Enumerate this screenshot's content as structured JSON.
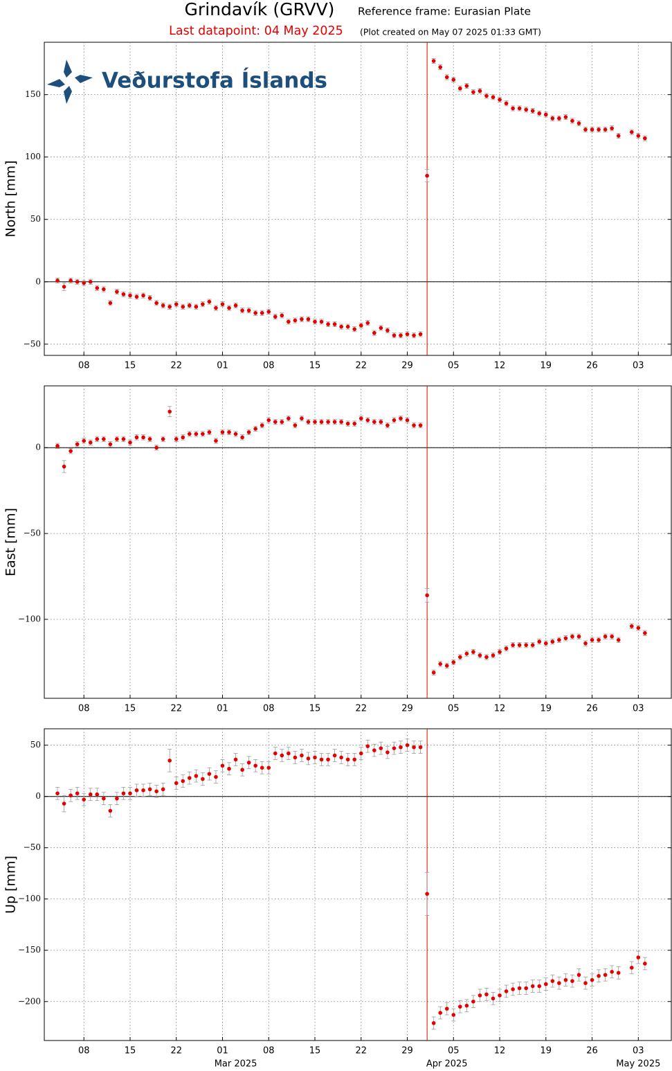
{
  "header": {
    "title": "Grindavík (GRVV)",
    "reference": "Reference frame: Eurasian Plate",
    "last_datapoint": "Last datapoint: 04 May 2025",
    "created": "(Plot created on May 07 2025 01:33 GMT)",
    "logo": "Veðurstofa Íslands"
  },
  "chart_data": [
    {
      "type": "scatter",
      "y_label": "North [mm]",
      "color": "#e60000",
      "error_color": "#999999",
      "grid": true,
      "event_line": "2025-04-01",
      "event_color": "#e60000",
      "xlim": [
        "2025-02-02",
        "2025-05-08"
      ],
      "xticks": [
        {
          "value": "2025-02-08",
          "label": "08"
        },
        {
          "value": "2025-02-15",
          "label": "15"
        },
        {
          "value": "2025-02-22",
          "label": "22"
        },
        {
          "value": "2025-03-01",
          "label": "01"
        },
        {
          "value": "2025-03-08",
          "label": "08"
        },
        {
          "value": "2025-03-15",
          "label": "15"
        },
        {
          "value": "2025-03-22",
          "label": "22"
        },
        {
          "value": "2025-03-29",
          "label": "29"
        },
        {
          "value": "2025-04-05",
          "label": "05"
        },
        {
          "value": "2025-04-12",
          "label": "12"
        },
        {
          "value": "2025-04-19",
          "label": "19"
        },
        {
          "value": "2025-04-26",
          "label": "26"
        },
        {
          "value": "2025-05-03",
          "label": "03"
        }
      ],
      "ylim": [
        -59,
        192
      ],
      "yticks": [
        {
          "value": -50,
          "label": "−50"
        },
        0,
        50,
        100,
        150
      ],
      "x": [
        "2025-02-04",
        "2025-02-05",
        "2025-02-06",
        "2025-02-07",
        "2025-02-08",
        "2025-02-09",
        "2025-02-10",
        "2025-02-11",
        "2025-02-12",
        "2025-02-13",
        "2025-02-14",
        "2025-02-15",
        "2025-02-16",
        "2025-02-17",
        "2025-02-18",
        "2025-02-19",
        "2025-02-20",
        "2025-02-21",
        "2025-02-22",
        "2025-02-23",
        "2025-02-24",
        "2025-02-25",
        "2025-02-26",
        "2025-02-27",
        "2025-02-28",
        "2025-03-01",
        "2025-03-02",
        "2025-03-03",
        "2025-03-04",
        "2025-03-05",
        "2025-03-06",
        "2025-03-07",
        "2025-03-08",
        "2025-03-09",
        "2025-03-10",
        "2025-03-11",
        "2025-03-12",
        "2025-03-13",
        "2025-03-14",
        "2025-03-15",
        "2025-03-16",
        "2025-03-17",
        "2025-03-18",
        "2025-03-19",
        "2025-03-20",
        "2025-03-21",
        "2025-03-22",
        "2025-03-23",
        "2025-03-24",
        "2025-03-25",
        "2025-03-26",
        "2025-03-27",
        "2025-03-28",
        "2025-03-29",
        "2025-03-30",
        "2025-03-31",
        "2025-04-01",
        "2025-04-02",
        "2025-04-03",
        "2025-04-04",
        "2025-04-05",
        "2025-04-06",
        "2025-04-07",
        "2025-04-08",
        "2025-04-09",
        "2025-04-10",
        "2025-04-11",
        "2025-04-12",
        "2025-04-13",
        "2025-04-14",
        "2025-04-15",
        "2025-04-16",
        "2025-04-17",
        "2025-04-18",
        "2025-04-19",
        "2025-04-20",
        "2025-04-21",
        "2025-04-22",
        "2025-04-23",
        "2025-04-24",
        "2025-04-25",
        "2025-04-26",
        "2025-04-27",
        "2025-04-28",
        "2025-04-29",
        "2025-04-30",
        "2025-05-02",
        "2025-05-03",
        "2025-05-04"
      ],
      "values": [
        1,
        -4,
        1,
        0,
        -1,
        0,
        -5,
        -6,
        -17,
        -8,
        -10,
        -11,
        -12,
        -11,
        -13,
        -17,
        -19,
        -20,
        -18,
        -20,
        -19,
        -20,
        -18,
        -16,
        -21,
        -18,
        -21,
        -19,
        -23,
        -23,
        -25,
        -25,
        -24,
        -28,
        -27,
        -32,
        -31,
        -30,
        -30,
        -32,
        -32,
        -34,
        -34,
        -36,
        -36,
        -38,
        -35,
        -33,
        -41,
        -37,
        -39,
        -43,
        -43,
        -42,
        -43,
        -42,
        85,
        177,
        172,
        164,
        162,
        155,
        157,
        152,
        153,
        149,
        148,
        146,
        143,
        139,
        139,
        138,
        137,
        135,
        134,
        131,
        131,
        132,
        129,
        127,
        122,
        122,
        122,
        122,
        123,
        117,
        120,
        117,
        115
      ],
      "errors": [
        2,
        3,
        2,
        2,
        2,
        2,
        2,
        2,
        2,
        2,
        2,
        2,
        2,
        2,
        2,
        2,
        2,
        2,
        2,
        2,
        2,
        2,
        2,
        2,
        2,
        2,
        2,
        2,
        2,
        2,
        2,
        2,
        2,
        2,
        2,
        2,
        2,
        2,
        2,
        2,
        2,
        2,
        2,
        2,
        2,
        2,
        2,
        2,
        2,
        2,
        2,
        2,
        2,
        2,
        2,
        2,
        5,
        2,
        2,
        2,
        2,
        2,
        2,
        2,
        2,
        2,
        2,
        2,
        2,
        2,
        2,
        2,
        2,
        2,
        2,
        2,
        2,
        2,
        2,
        2,
        2,
        2,
        2,
        2,
        2,
        2,
        2,
        2,
        2
      ]
    },
    {
      "type": "scatter",
      "y_label": "East [mm]",
      "color": "#e60000",
      "error_color": "#999999",
      "grid": true,
      "event_line": "2025-04-01",
      "event_color": "#e60000",
      "xlim": [
        "2025-02-02",
        "2025-05-08"
      ],
      "xticks": [
        {
          "value": "2025-02-08",
          "label": "08"
        },
        {
          "value": "2025-02-15",
          "label": "15"
        },
        {
          "value": "2025-02-22",
          "label": "22"
        },
        {
          "value": "2025-03-01",
          "label": "01"
        },
        {
          "value": "2025-03-08",
          "label": "08"
        },
        {
          "value": "2025-03-15",
          "label": "15"
        },
        {
          "value": "2025-03-22",
          "label": "22"
        },
        {
          "value": "2025-03-29",
          "label": "29"
        },
        {
          "value": "2025-04-05",
          "label": "05"
        },
        {
          "value": "2025-04-12",
          "label": "12"
        },
        {
          "value": "2025-04-19",
          "label": "19"
        },
        {
          "value": "2025-04-26",
          "label": "26"
        },
        {
          "value": "2025-05-03",
          "label": "03"
        }
      ],
      "ylim": [
        -146,
        36
      ],
      "yticks": [
        {
          "value": -100,
          "label": "−100"
        },
        {
          "value": -50,
          "label": "−50"
        },
        0
      ],
      "x": [
        "2025-02-04",
        "2025-02-05",
        "2025-02-06",
        "2025-02-07",
        "2025-02-08",
        "2025-02-09",
        "2025-02-10",
        "2025-02-11",
        "2025-02-12",
        "2025-02-13",
        "2025-02-14",
        "2025-02-15",
        "2025-02-16",
        "2025-02-17",
        "2025-02-18",
        "2025-02-19",
        "2025-02-20",
        "2025-02-21",
        "2025-02-22",
        "2025-02-23",
        "2025-02-24",
        "2025-02-25",
        "2025-02-26",
        "2025-02-27",
        "2025-02-28",
        "2025-03-01",
        "2025-03-02",
        "2025-03-03",
        "2025-03-04",
        "2025-03-05",
        "2025-03-06",
        "2025-03-07",
        "2025-03-08",
        "2025-03-09",
        "2025-03-10",
        "2025-03-11",
        "2025-03-12",
        "2025-03-13",
        "2025-03-14",
        "2025-03-15",
        "2025-03-16",
        "2025-03-17",
        "2025-03-18",
        "2025-03-19",
        "2025-03-20",
        "2025-03-21",
        "2025-03-22",
        "2025-03-23",
        "2025-03-24",
        "2025-03-25",
        "2025-03-26",
        "2025-03-27",
        "2025-03-28",
        "2025-03-29",
        "2025-03-30",
        "2025-03-31",
        "2025-04-01",
        "2025-04-02",
        "2025-04-03",
        "2025-04-04",
        "2025-04-05",
        "2025-04-06",
        "2025-04-07",
        "2025-04-08",
        "2025-04-09",
        "2025-04-10",
        "2025-04-11",
        "2025-04-12",
        "2025-04-13",
        "2025-04-14",
        "2025-04-15",
        "2025-04-16",
        "2025-04-17",
        "2025-04-18",
        "2025-04-19",
        "2025-04-20",
        "2025-04-21",
        "2025-04-22",
        "2025-04-23",
        "2025-04-24",
        "2025-04-25",
        "2025-04-26",
        "2025-04-27",
        "2025-04-28",
        "2025-04-29",
        "2025-04-30",
        "2025-05-02",
        "2025-05-03",
        "2025-05-04"
      ],
      "values": [
        1,
        -11,
        -2,
        2,
        4,
        3,
        5,
        5,
        2,
        5,
        5,
        3,
        6,
        6,
        5,
        0,
        5,
        21,
        5,
        6,
        8,
        8,
        8,
        9,
        4,
        9,
        9,
        8,
        6,
        9,
        11,
        13,
        16,
        15,
        15,
        17,
        13,
        17,
        15,
        15,
        15,
        15,
        15,
        15,
        14,
        14,
        17,
        16,
        15,
        15,
        13,
        16,
        17,
        16,
        13,
        13,
        -86,
        -131,
        -126,
        -127,
        -125,
        -122,
        -120,
        -119,
        -121,
        -122,
        -121,
        -119,
        -117,
        -115,
        -115,
        -115,
        -115,
        -113,
        -114,
        -113,
        -112,
        -111,
        -110,
        -110,
        -114,
        -112,
        -112,
        -110,
        -110,
        -112,
        -104,
        -105,
        -108
      ],
      "errors": [
        1.5,
        3.5,
        1.5,
        1.5,
        1.5,
        1.5,
        1.5,
        1.5,
        1.5,
        1.5,
        1.5,
        1.5,
        1.5,
        1.5,
        1.5,
        1.5,
        1.5,
        3,
        1.5,
        1.5,
        1.5,
        1.5,
        1.5,
        1.5,
        1.5,
        1.5,
        1.5,
        1.5,
        1.5,
        1.5,
        1.5,
        1.5,
        1.5,
        1.5,
        1.5,
        1.5,
        1.5,
        1.5,
        1.5,
        1.5,
        1.5,
        1.5,
        1.5,
        1.5,
        1.5,
        1.5,
        1.5,
        1.5,
        1.5,
        1.5,
        1.5,
        1.5,
        1.5,
        1.5,
        1.5,
        1.5,
        4,
        1.5,
        1.5,
        1.5,
        1.5,
        1.5,
        1.5,
        1.5,
        1.5,
        1.5,
        1.5,
        1.5,
        1.5,
        1.5,
        1.5,
        1.5,
        1.5,
        1.5,
        1.5,
        1.5,
        1.5,
        1.5,
        1.5,
        1.5,
        1.5,
        1.5,
        1.5,
        1.5,
        1.5,
        1.5,
        1.5,
        1.5,
        1.5
      ]
    },
    {
      "type": "scatter",
      "y_label": "Up [mm]",
      "color": "#e60000",
      "error_color": "#999999",
      "grid": true,
      "event_line": "2025-04-01",
      "event_color": "#e60000",
      "xlim": [
        "2025-02-02",
        "2025-05-08"
      ],
      "xticks": [
        {
          "value": "2025-02-08",
          "label": "08"
        },
        {
          "value": "2025-02-15",
          "label": "15"
        },
        {
          "value": "2025-02-22",
          "label": "22"
        },
        {
          "value": "2025-03-01",
          "label": "01"
        },
        {
          "value": "2025-03-08",
          "label": "08"
        },
        {
          "value": "2025-03-15",
          "label": "15"
        },
        {
          "value": "2025-03-22",
          "label": "22"
        },
        {
          "value": "2025-03-29",
          "label": "29"
        },
        {
          "value": "2025-04-05",
          "label": "05"
        },
        {
          "value": "2025-04-12",
          "label": "12"
        },
        {
          "value": "2025-04-19",
          "label": "19"
        },
        {
          "value": "2025-04-26",
          "label": "26"
        },
        {
          "value": "2025-05-03",
          "label": "03"
        }
      ],
      "month_labels": [
        {
          "value": "2025-03-03",
          "label": "Mar 2025"
        },
        {
          "value": "2025-04-04",
          "label": "Apr 2025"
        },
        {
          "value": "2025-05-03",
          "label": "May 2025"
        }
      ],
      "ylim": [
        -238,
        66
      ],
      "yticks": [
        {
          "value": -200,
          "label": "−200"
        },
        {
          "value": -150,
          "label": "−150"
        },
        {
          "value": -100,
          "label": "−100"
        },
        {
          "value": -50,
          "label": "−50"
        },
        0,
        50
      ],
      "x": [
        "2025-02-04",
        "2025-02-05",
        "2025-02-06",
        "2025-02-07",
        "2025-02-08",
        "2025-02-09",
        "2025-02-10",
        "2025-02-11",
        "2025-02-12",
        "2025-02-13",
        "2025-02-14",
        "2025-02-15",
        "2025-02-16",
        "2025-02-17",
        "2025-02-18",
        "2025-02-19",
        "2025-02-20",
        "2025-02-21",
        "2025-02-22",
        "2025-02-23",
        "2025-02-24",
        "2025-02-25",
        "2025-02-26",
        "2025-02-27",
        "2025-02-28",
        "2025-03-01",
        "2025-03-02",
        "2025-03-03",
        "2025-03-04",
        "2025-03-05",
        "2025-03-06",
        "2025-03-07",
        "2025-03-08",
        "2025-03-09",
        "2025-03-10",
        "2025-03-11",
        "2025-03-12",
        "2025-03-13",
        "2025-03-14",
        "2025-03-15",
        "2025-03-16",
        "2025-03-17",
        "2025-03-18",
        "2025-03-19",
        "2025-03-20",
        "2025-03-21",
        "2025-03-22",
        "2025-03-23",
        "2025-03-24",
        "2025-03-25",
        "2025-03-26",
        "2025-03-27",
        "2025-03-28",
        "2025-03-29",
        "2025-03-30",
        "2025-03-31",
        "2025-04-01",
        "2025-04-02",
        "2025-04-03",
        "2025-04-04",
        "2025-04-05",
        "2025-04-06",
        "2025-04-07",
        "2025-04-08",
        "2025-04-09",
        "2025-04-10",
        "2025-04-11",
        "2025-04-12",
        "2025-04-13",
        "2025-04-14",
        "2025-04-15",
        "2025-04-16",
        "2025-04-17",
        "2025-04-18",
        "2025-04-19",
        "2025-04-20",
        "2025-04-21",
        "2025-04-22",
        "2025-04-23",
        "2025-04-24",
        "2025-04-25",
        "2025-04-26",
        "2025-04-27",
        "2025-04-28",
        "2025-04-29",
        "2025-04-30",
        "2025-05-02",
        "2025-05-03",
        "2025-05-04"
      ],
      "values": [
        3,
        -7,
        1,
        3,
        -3,
        2,
        2,
        -2,
        -14,
        -2,
        3,
        3,
        6,
        6,
        7,
        5,
        7,
        35,
        13,
        15,
        18,
        20,
        17,
        22,
        19,
        30,
        27,
        36,
        26,
        33,
        30,
        28,
        28,
        42,
        40,
        42,
        38,
        40,
        37,
        38,
        36,
        36,
        40,
        38,
        36,
        36,
        42,
        49,
        45,
        47,
        43,
        47,
        48,
        50,
        48,
        48,
        -95,
        -221,
        -211,
        -207,
        -213,
        -205,
        -204,
        -200,
        -194,
        -193,
        -197,
        -194,
        -190,
        -188,
        -187,
        -187,
        -185,
        -185,
        -183,
        -180,
        -182,
        -179,
        -180,
        -174,
        -182,
        -179,
        -175,
        -174,
        -171,
        -172,
        -167,
        -157,
        -163
      ],
      "errors": [
        6,
        8,
        6,
        6,
        6,
        6,
        6,
        6,
        6,
        6,
        6,
        6,
        6,
        6,
        6,
        6,
        6,
        11,
        6,
        6,
        6,
        6,
        6,
        6,
        6,
        6,
        6,
        6,
        6,
        6,
        6,
        6,
        6,
        6,
        6,
        6,
        6,
        6,
        6,
        6,
        6,
        6,
        6,
        6,
        6,
        6,
        6,
        6,
        6,
        6,
        6,
        6,
        6,
        6,
        6,
        6,
        21,
        6,
        6,
        6,
        6,
        6,
        6,
        6,
        6,
        6,
        6,
        6,
        6,
        6,
        6,
        6,
        6,
        6,
        6,
        6,
        6,
        6,
        6,
        6,
        6,
        6,
        6,
        6,
        6,
        6,
        6,
        6,
        6
      ]
    }
  ]
}
